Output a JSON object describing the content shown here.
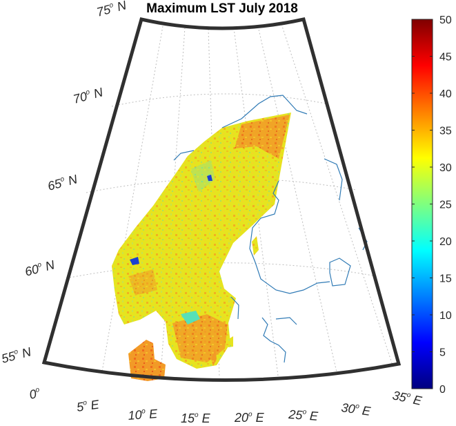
{
  "title": "Maximum LST July 2018",
  "lat_labels": [
    {
      "deg": "75",
      "hemi": "N"
    },
    {
      "deg": "70",
      "hemi": "N"
    },
    {
      "deg": "65",
      "hemi": "N"
    },
    {
      "deg": "60",
      "hemi": "N"
    },
    {
      "deg": "55",
      "hemi": "N"
    }
  ],
  "lon_labels": [
    {
      "deg": "0",
      "hemi": ""
    },
    {
      "deg": "5",
      "hemi": "E"
    },
    {
      "deg": "10",
      "hemi": "E"
    },
    {
      "deg": "15",
      "hemi": "E"
    },
    {
      "deg": "20",
      "hemi": "E"
    },
    {
      "deg": "25",
      "hemi": "E"
    },
    {
      "deg": "30",
      "hemi": "E"
    },
    {
      "deg": "35",
      "hemi": "E"
    }
  ],
  "colorbar": {
    "min": 0,
    "max": 50,
    "ticks": [
      "0",
      "5",
      "10",
      "15",
      "20",
      "25",
      "30",
      "35",
      "40",
      "45",
      "50"
    ],
    "colormap": "jet"
  },
  "map_extent": {
    "lat_range": [
      55,
      75
    ],
    "lon_range": [
      0,
      35
    ]
  },
  "colors": {
    "land_dominant": "#e8e61e",
    "land_warm": "#f28c22",
    "water_outline": "#2f7ab5",
    "frame": "#303030"
  }
}
